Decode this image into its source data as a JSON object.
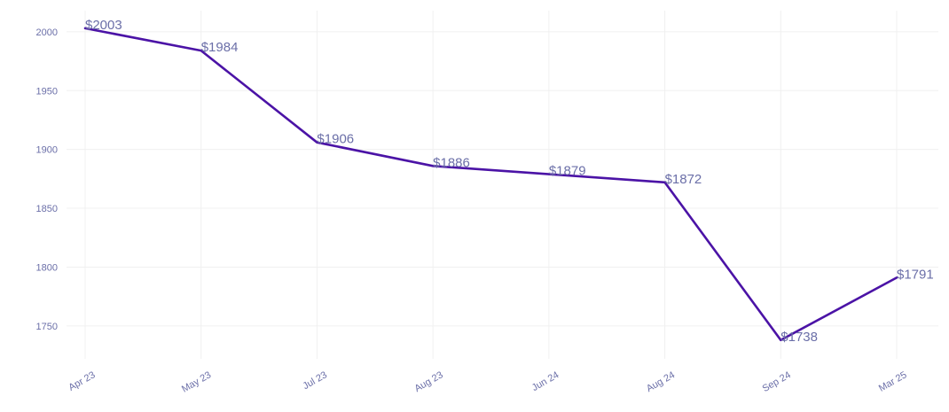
{
  "chart_data": {
    "type": "line",
    "title": "",
    "xlabel": "",
    "ylabel": "",
    "categories": [
      "Apr 23",
      "May 23",
      "Jul 23",
      "Aug 23",
      "Jun 24",
      "Aug 24",
      "Sep 24",
      "Mar 25"
    ],
    "series": [
      {
        "values": [
          2003,
          1984,
          1906,
          1886,
          1879,
          1872,
          1738,
          1791
        ],
        "labels": [
          "$2003",
          "$1984",
          "$1906",
          "$1886",
          "$1879",
          "$1872",
          "$1738",
          "$1791"
        ],
        "color": "#4b13a6"
      }
    ],
    "ylim": [
      1722,
      2018
    ],
    "yticks": [
      1750,
      1800,
      1850,
      1900,
      1950,
      2000
    ],
    "grid": true,
    "legend": "none",
    "colors": {
      "line": "#4b13a6",
      "text": "#6b6fa8",
      "grid": "#f0f0f0"
    }
  }
}
